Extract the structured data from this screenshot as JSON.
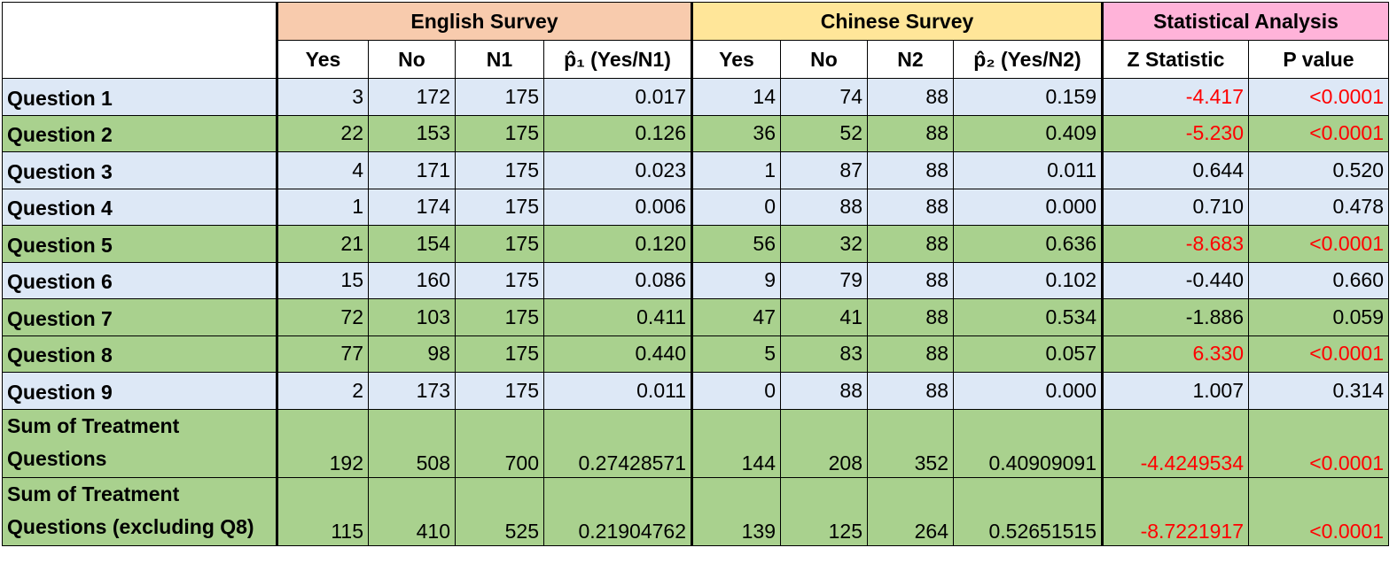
{
  "table": {
    "groups": [
      {
        "title": "English Survey",
        "fill": "#f8cbad"
      },
      {
        "title": "Chinese Survey",
        "fill": "#ffe699"
      },
      {
        "title": "Statistical Analysis",
        "fill": "#ffb3d9"
      }
    ],
    "columns": [
      "Yes",
      "No",
      "N1",
      "p̂₁ (Yes/N1)",
      "Yes",
      "No",
      "N2",
      "p̂₂ (Yes/N2)",
      "Z Statistic",
      "P value"
    ],
    "rows": [
      {
        "label": "Question 1",
        "fill": "#dde8f6",
        "alert": true,
        "cells": [
          "3",
          "172",
          "175",
          "0.017",
          "14",
          "74",
          "88",
          "0.159",
          "-4.417",
          "<0.0001"
        ]
      },
      {
        "label": "Question 2",
        "fill": "#a9d18e",
        "alert": true,
        "cells": [
          "22",
          "153",
          "175",
          "0.126",
          "36",
          "52",
          "88",
          "0.409",
          "-5.230",
          "<0.0001"
        ]
      },
      {
        "label": "Question 3",
        "fill": "#dde8f6",
        "alert": false,
        "cells": [
          "4",
          "171",
          "175",
          "0.023",
          "1",
          "87",
          "88",
          "0.011",
          "0.644",
          "0.520"
        ]
      },
      {
        "label": "Question 4",
        "fill": "#dde8f6",
        "alert": false,
        "cells": [
          "1",
          "174",
          "175",
          "0.006",
          "0",
          "88",
          "88",
          "0.000",
          "0.710",
          "0.478"
        ]
      },
      {
        "label": "Question 5",
        "fill": "#a9d18e",
        "alert": true,
        "cells": [
          "21",
          "154",
          "175",
          "0.120",
          "56",
          "32",
          "88",
          "0.636",
          "-8.683",
          "<0.0001"
        ]
      },
      {
        "label": "Question 6",
        "fill": "#dde8f6",
        "alert": false,
        "cells": [
          "15",
          "160",
          "175",
          "0.086",
          "9",
          "79",
          "88",
          "0.102",
          "-0.440",
          "0.660"
        ]
      },
      {
        "label": "Question 7",
        "fill": "#a9d18e",
        "alert": false,
        "cells": [
          "72",
          "103",
          "175",
          "0.411",
          "47",
          "41",
          "88",
          "0.534",
          "-1.886",
          "0.059"
        ]
      },
      {
        "label": "Question 8",
        "fill": "#a9d18e",
        "alert": true,
        "cells": [
          "77",
          "98",
          "175",
          "0.440",
          "5",
          "83",
          "88",
          "0.057",
          "6.330",
          "<0.0001"
        ]
      },
      {
        "label": "Question 9",
        "fill": "#dde8f6",
        "alert": false,
        "cells": [
          "2",
          "173",
          "175",
          "0.011",
          "0",
          "88",
          "88",
          "0.000",
          "1.007",
          "0.314"
        ]
      },
      {
        "label": "Sum of Treatment Questions",
        "fill": "#a9d18e",
        "alert": true,
        "cells": [
          "192",
          "508",
          "700",
          "0.27428571",
          "144",
          "208",
          "352",
          "0.40909091",
          "-4.4249534",
          "<0.0001"
        ]
      },
      {
        "label": "Sum of Treatment Questions (excluding Q8)",
        "fill": "#a9d18e",
        "alert": true,
        "cells": [
          "115",
          "410",
          "525",
          "0.21904762",
          "139",
          "125",
          "264",
          "0.52651515",
          "-8.7221917",
          "<0.0001"
        ]
      }
    ]
  }
}
